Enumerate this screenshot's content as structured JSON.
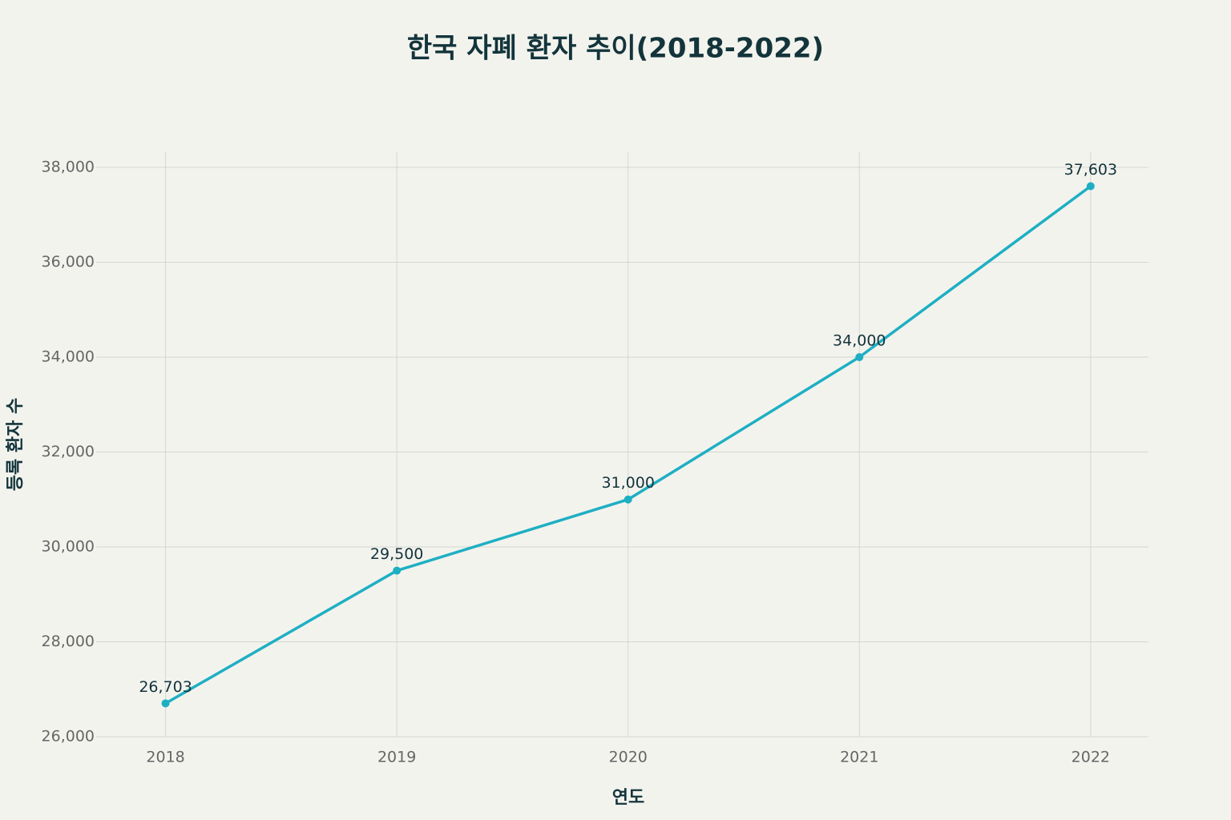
{
  "chart_data": {
    "type": "line",
    "title": "한국 자폐 환자 추이(2018-2022)",
    "x_label": "연도",
    "y_label": "등록 환자 수",
    "x": [
      2018,
      2019,
      2020,
      2021,
      2022
    ],
    "series": [
      {
        "color": "#1eafc3",
        "values": [
          26703,
          29500,
          31000,
          34000,
          37603
        ],
        "value_labels": [
          "26,703",
          "29,500",
          "31,000",
          "34,000",
          "37,603"
        ]
      }
    ],
    "xlim": [
      2017.7,
      2022.25
    ],
    "xticks": [
      2018,
      2019,
      2020,
      2021,
      2022
    ],
    "ylim": [
      26000,
      38320
    ],
    "yticks": [
      {
        "value": 26000,
        "label": "26,000"
      },
      {
        "value": 28000,
        "label": "28,000"
      },
      {
        "value": 30000,
        "label": "30,000"
      },
      {
        "value": 32000,
        "label": "32,000"
      },
      {
        "value": 34000,
        "label": "34,000"
      },
      {
        "value": 36000,
        "label": "36,000"
      },
      {
        "value": 38000,
        "label": "38,000"
      }
    ],
    "grid": true
  }
}
